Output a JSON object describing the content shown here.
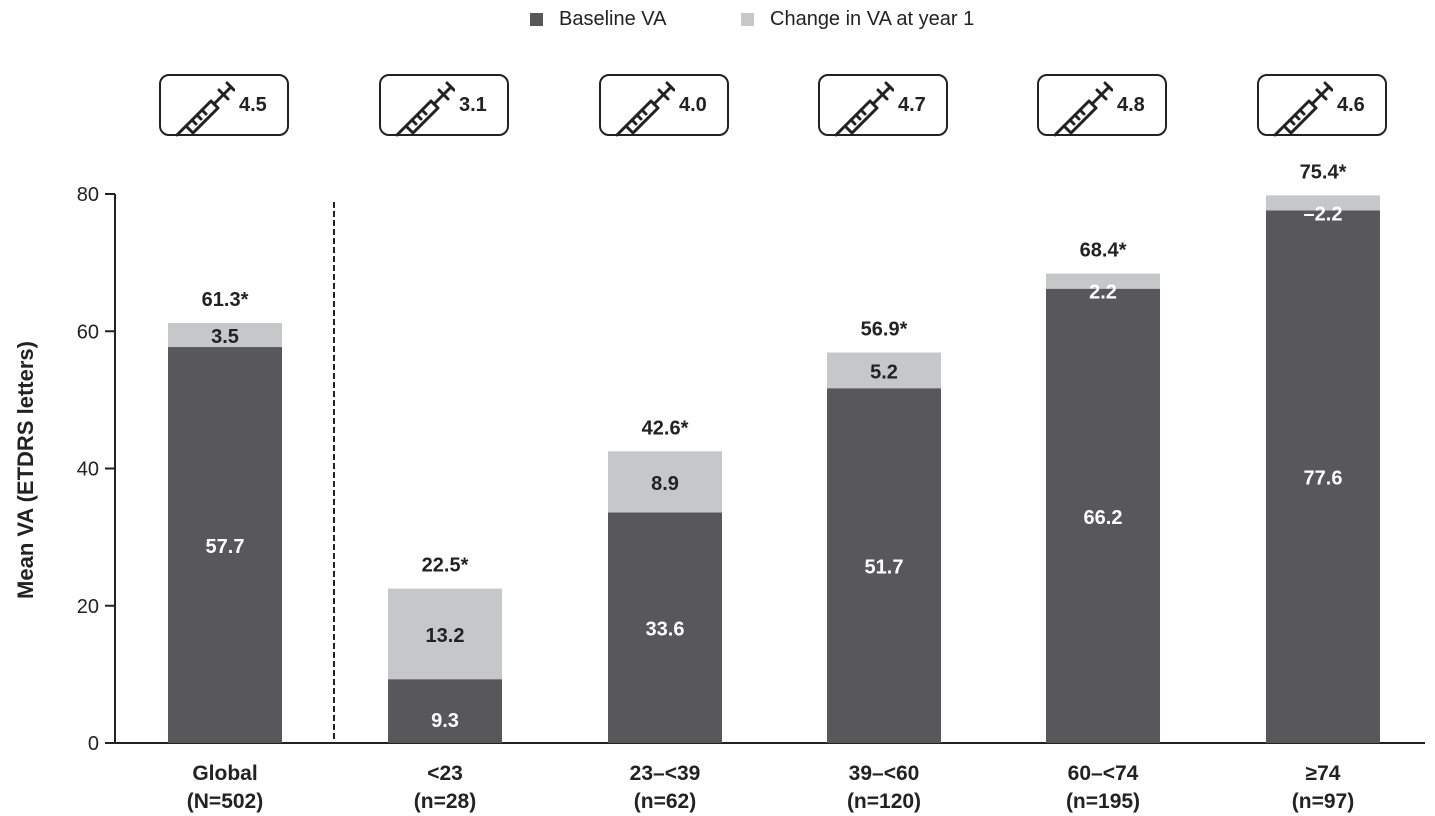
{
  "legend": {
    "baseline_label": "Baseline VA",
    "change_label": "Change in VA at year 1"
  },
  "colors": {
    "baseline": "#58585a",
    "change": "#c6c7c8",
    "text_dark": "#222222",
    "text_light": "#ffffff"
  },
  "injection_icon": "syringe-icon",
  "chart_data": {
    "type": "bar",
    "stacked": true,
    "title": "",
    "xlabel": "",
    "ylabel": "Mean VA (ETDRS letters)",
    "ylim": [
      0,
      80
    ],
    "yticks": [
      "0",
      "20",
      "40",
      "60",
      "80"
    ],
    "separator_after_first_category": true,
    "categories": [
      {
        "label": "Global",
        "n": "(N=502)"
      },
      {
        "label": "<23",
        "n": "(n=28)"
      },
      {
        "label": "23–<39",
        "n": "(n=62)"
      },
      {
        "label": "39–<60",
        "n": "(n=120)"
      },
      {
        "label": "60–<74",
        "n": "(n=195)"
      },
      {
        "label": "≥74",
        "n": "(n=97)"
      }
    ],
    "series": [
      {
        "name": "Baseline VA",
        "values": [
          57.7,
          9.3,
          33.6,
          51.7,
          66.2,
          77.6
        ],
        "labels": [
          "57.7",
          "9.3",
          "33.6",
          "51.7",
          "66.2",
          "77.6"
        ]
      },
      {
        "name": "Change in VA at year 1",
        "values": [
          3.5,
          13.2,
          8.9,
          5.2,
          2.2,
          -2.2
        ],
        "labels": [
          "3.5",
          "13.2",
          "8.9",
          "5.2",
          "2.2",
          "–2.2"
        ]
      }
    ],
    "totals": [
      "61.3*",
      "22.5*",
      "42.6*",
      "56.9*",
      "68.4*",
      "75.4*"
    ],
    "injections": [
      "4.5",
      "3.1",
      "4.0",
      "4.7",
      "4.8",
      "4.6"
    ]
  }
}
